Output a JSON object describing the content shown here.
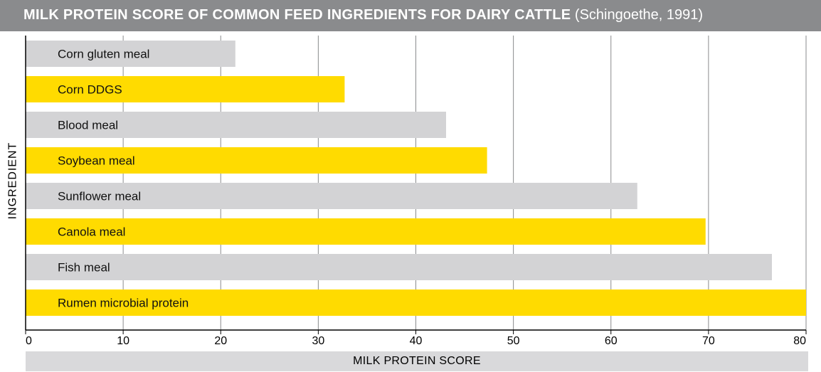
{
  "header": {
    "title": "MILK PROTEIN SCORE OF COMMON FEED INGREDIENTS FOR DAIRY CATTLE",
    "citation": "(Schingoethe, 1991)"
  },
  "chart_data": {
    "type": "bar",
    "orientation": "horizontal",
    "title": "MILK PROTEIN SCORE OF COMMON FEED INGREDIENTS FOR DAIRY CATTLE (Schingoethe, 1991)",
    "xlabel": "MILK PROTEIN SCORE",
    "ylabel": "INGREDIENT",
    "xlim": [
      0,
      80
    ],
    "xticks": [
      0,
      10,
      20,
      30,
      40,
      50,
      60,
      70,
      80
    ],
    "grid": true,
    "categories": [
      "Corn gluten meal",
      "Corn DDGS",
      "Blood meal",
      "Soybean meal",
      "Sunflower meal",
      "Canola meal",
      "Fish meal",
      "Rumen microbial protein"
    ],
    "values": [
      21.5,
      32.7,
      43.1,
      47.3,
      62.7,
      69.7,
      76.5,
      80
    ]
  },
  "colors": {
    "bar_gray": "#d3d3d5",
    "bar_yellow": "#ffdb00",
    "grid": "#8a8b8d",
    "header_bg": "#8a8b8d",
    "axis_label_bg": "#d9d9db"
  }
}
